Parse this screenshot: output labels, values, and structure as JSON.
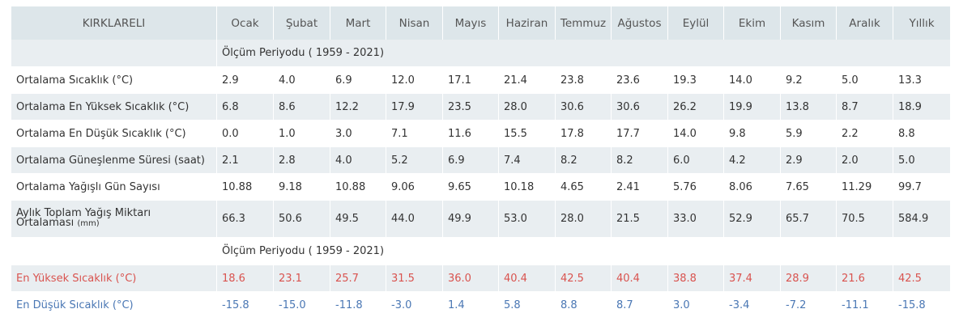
{
  "header": {
    "station": "KIRKLARELI",
    "months": [
      "Ocak",
      "Şubat",
      "Mart",
      "Nisan",
      "Mayıs",
      "Haziran",
      "Temmuz",
      "Ağustos",
      "Eylül",
      "Ekim",
      "Kasım",
      "Aralık",
      "Yıllık"
    ]
  },
  "period_label": "Ölçüm Periyodu ( 1959 - 2021)",
  "rows": [
    {
      "label": "Ortalama Sıcaklık (°C)",
      "values": [
        "2.9",
        "4.0",
        "6.9",
        "12.0",
        "17.1",
        "21.4",
        "23.8",
        "23.6",
        "19.3",
        "14.0",
        "9.2",
        "5.0",
        "13.3"
      ]
    },
    {
      "label": "Ortalama En Yüksek Sıcaklık (°C)",
      "values": [
        "6.8",
        "8.6",
        "12.2",
        "17.9",
        "23.5",
        "28.0",
        "30.6",
        "30.6",
        "26.2",
        "19.9",
        "13.8",
        "8.7",
        "18.9"
      ]
    },
    {
      "label": "Ortalama En Düşük Sıcaklık (°C)",
      "values": [
        "0.0",
        "1.0",
        "3.0",
        "7.1",
        "11.6",
        "15.5",
        "17.8",
        "17.7",
        "14.0",
        "9.8",
        "5.9",
        "2.2",
        "8.8"
      ]
    },
    {
      "label": "Ortalama Güneşlenme Süresi (saat)",
      "values": [
        "2.1",
        "2.8",
        "4.0",
        "5.2",
        "6.9",
        "7.4",
        "8.2",
        "8.2",
        "6.0",
        "4.2",
        "2.9",
        "2.0",
        "5.0"
      ]
    },
    {
      "label": "Ortalama Yağışlı Gün Sayısı",
      "values": [
        "10.88",
        "9.18",
        "10.88",
        "9.06",
        "9.65",
        "10.18",
        "4.65",
        "2.41",
        "5.76",
        "8.06",
        "7.65",
        "11.29",
        "99.7"
      ]
    },
    {
      "label_line1": "Aylık Toplam Yağış Miktarı",
      "label_line2": "Ortalaması",
      "label_unit": "(mm)",
      "values": [
        "66.3",
        "50.6",
        "49.5",
        "44.0",
        "49.9",
        "53.0",
        "28.0",
        "21.5",
        "33.0",
        "52.9",
        "65.7",
        "70.5",
        "584.9"
      ]
    }
  ],
  "extremes_period_label": "Ölçüm Periyodu ( 1959 - 2021)",
  "extremes": [
    {
      "label": "En Yüksek Sıcaklık (°C)",
      "values": [
        "18.6",
        "23.1",
        "25.7",
        "31.5",
        "36.0",
        "40.4",
        "42.5",
        "40.4",
        "38.8",
        "37.4",
        "28.9",
        "21.6",
        "42.5"
      ]
    },
    {
      "label": "En Düşük Sıcaklık (°C)",
      "values": [
        "-15.8",
        "-15.0",
        "-11.8",
        "-3.0",
        "1.4",
        "5.8",
        "8.8",
        "8.7",
        "3.0",
        "-3.4",
        "-7.2",
        "-11.1",
        "-15.8"
      ]
    }
  ],
  "colors": {
    "header_bg": "#dde6ea",
    "band_bg": "#e9eef1",
    "hot": "#d9534f",
    "cold": "#4a77b4"
  }
}
